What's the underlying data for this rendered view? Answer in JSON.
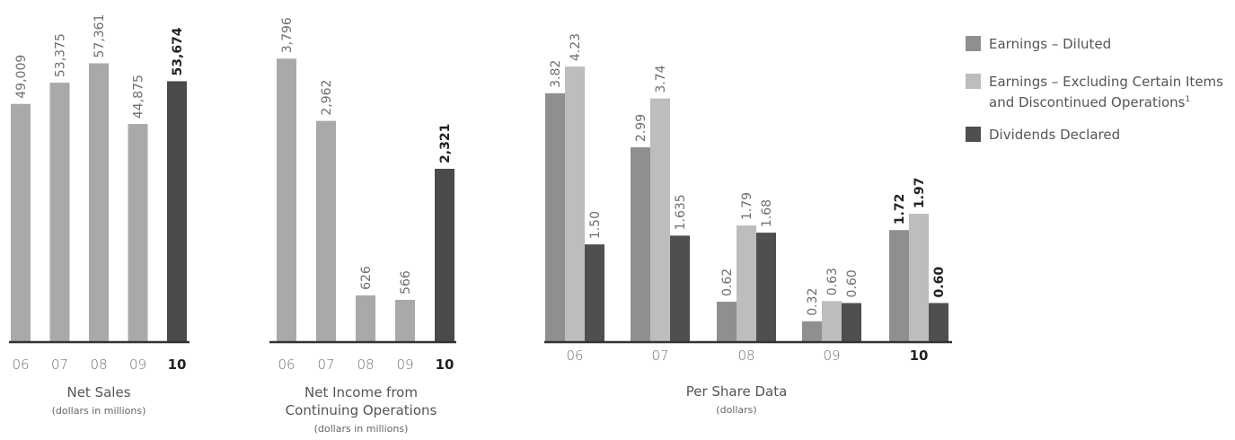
{
  "colors": {
    "diluted": "#8f8f8f",
    "excluding": "#bdbdbd",
    "dividends": "#4f4f4f",
    "highlight": "#4a4a4a",
    "base": "#a9a9a9"
  },
  "chart_data": [
    {
      "type": "bar",
      "title": "Net Sales",
      "subtitle": "(dollars in millions)",
      "categories": [
        "06",
        "07",
        "08",
        "09",
        "10"
      ],
      "values": [
        49009,
        53375,
        57361,
        44875,
        53674
      ],
      "value_labels": [
        "49,009",
        "53,375",
        "57,361",
        "44,875",
        "53,674"
      ],
      "highlight_index": 4,
      "ylim": [
        0,
        63000
      ]
    },
    {
      "type": "bar",
      "title": "Net Income from",
      "title_line2": "Continuing Operations",
      "subtitle": "(dollars in millions)",
      "categories": [
        "06",
        "07",
        "08",
        "09",
        "10"
      ],
      "values": [
        3796,
        2962,
        626,
        566,
        2321
      ],
      "value_labels": [
        "3,796",
        "2,962",
        "626",
        "566",
        "2,321"
      ],
      "highlight_index": 4,
      "ylim": [
        0,
        4100
      ]
    },
    {
      "type": "bar",
      "title": "Per Share Data",
      "subtitle": "(dollars)",
      "categories": [
        "06",
        "07",
        "08",
        "09",
        "10"
      ],
      "highlight_index": 4,
      "ylim": [
        0,
        4.7
      ],
      "legend_position": "top-right",
      "series": [
        {
          "name": "Earnings – Diluted",
          "values": [
            3.82,
            2.99,
            0.62,
            0.32,
            1.72
          ],
          "value_labels": [
            "3.82",
            "2.99",
            "0.62",
            "0.32",
            "1.72"
          ]
        },
        {
          "name": "Earnings – Excluding Certain Items",
          "name_line2": "and Discontinued Operations",
          "footnote": "1",
          "values": [
            4.23,
            3.74,
            1.79,
            0.63,
            1.97
          ],
          "value_labels": [
            "4.23",
            "3.74",
            "1.79",
            "0.63",
            "1.97"
          ]
        },
        {
          "name": "Dividends Declared",
          "values": [
            1.5,
            1.635,
            1.68,
            0.6,
            0.6
          ],
          "value_labels": [
            "1.50",
            "1.635",
            "1.68",
            "0.60",
            "0.60"
          ]
        }
      ]
    }
  ]
}
